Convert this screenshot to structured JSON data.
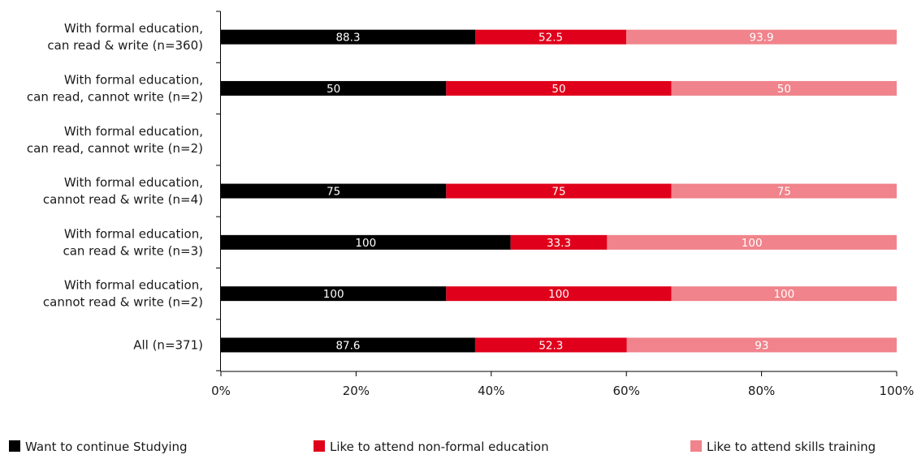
{
  "chart_data": {
    "type": "bar",
    "orientation": "horizontal",
    "stacked": true,
    "normalized": true,
    "categories": [
      [
        "With formal education,",
        "can read & write (n=360)"
      ],
      [
        "With formal education,",
        "can read, cannot write (n=2)"
      ],
      [
        "With formal education,",
        "can read, cannot write (n=2)"
      ],
      [
        "With formal education,",
        "cannot read & write (n=4)"
      ],
      [
        "With formal education,",
        "can read & write (n=3)"
      ],
      [
        "With formal education,",
        "cannot read & write (n=2)"
      ],
      [
        "All (n=371)"
      ]
    ],
    "series": [
      {
        "name": "Want to continue Studying",
        "color": "#000000",
        "values": [
          88.3,
          50,
          null,
          75,
          100,
          100,
          87.6
        ]
      },
      {
        "name": "Like to attend non-formal education",
        "color": "#e0001b",
        "values": [
          52.5,
          50,
          null,
          75,
          33.3,
          100,
          52.3
        ]
      },
      {
        "name": "Like to attend skills training",
        "color": "#f0838b",
        "values": [
          93.9,
          50,
          null,
          75,
          100,
          100,
          93
        ]
      }
    ],
    "xlim": [
      0,
      100
    ],
    "xticks": [
      "0%",
      "20%",
      "40%",
      "60%",
      "80%",
      "100%"
    ],
    "grid": false,
    "legend_position": "bottom"
  }
}
